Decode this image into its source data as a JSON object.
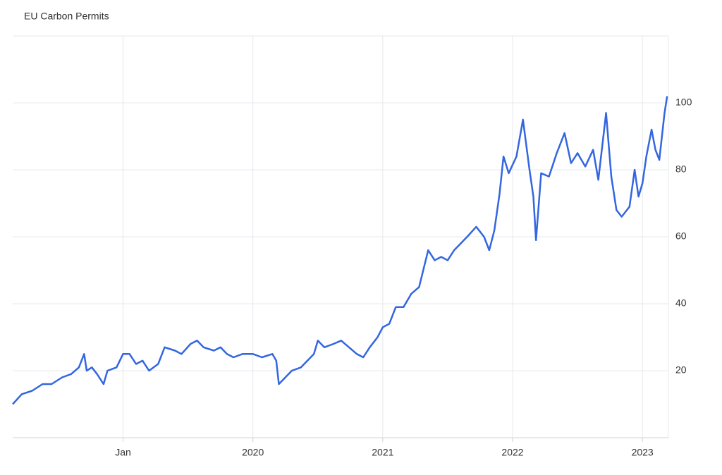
{
  "chart_data": {
    "type": "line",
    "title": "EU Carbon Permits",
    "x": [
      2018.15,
      2018.22,
      2018.3,
      2018.38,
      2018.45,
      2018.53,
      2018.6,
      2018.66,
      2018.7,
      2018.72,
      2018.76,
      2018.8,
      2018.85,
      2018.88,
      2018.95,
      2019.0,
      2019.05,
      2019.1,
      2019.15,
      2019.2,
      2019.27,
      2019.32,
      2019.4,
      2019.45,
      2019.52,
      2019.57,
      2019.62,
      2019.7,
      2019.75,
      2019.8,
      2019.85,
      2019.92,
      2020.0,
      2020.07,
      2020.15,
      2020.18,
      2020.2,
      2020.25,
      2020.3,
      2020.37,
      2020.42,
      2020.47,
      2020.5,
      2020.55,
      2020.62,
      2020.68,
      2020.74,
      2020.8,
      2020.85,
      2020.9,
      2020.96,
      2021.0,
      2021.05,
      2021.1,
      2021.16,
      2021.22,
      2021.28,
      2021.35,
      2021.4,
      2021.45,
      2021.5,
      2021.55,
      2021.65,
      2021.72,
      2021.78,
      2021.82,
      2021.86,
      2021.9,
      2021.93,
      2021.97,
      2022.03,
      2022.08,
      2022.13,
      2022.16,
      2022.18,
      2022.22,
      2022.28,
      2022.34,
      2022.4,
      2022.45,
      2022.5,
      2022.56,
      2022.62,
      2022.66,
      2022.72,
      2022.76,
      2022.8,
      2022.84,
      2022.9,
      2022.94,
      2022.97,
      2023.0,
      2023.03,
      2023.07,
      2023.1,
      2023.13,
      2023.17,
      2023.19
    ],
    "series": [
      {
        "name": "EU Carbon Permits",
        "color": "#3366e0",
        "values": [
          10,
          13,
          14,
          16,
          16,
          18,
          19,
          21,
          25,
          20,
          21,
          19,
          16,
          20,
          21,
          25,
          25,
          22,
          23,
          20,
          22,
          27,
          26,
          25,
          28,
          29,
          27,
          26,
          27,
          25,
          24,
          25,
          25,
          24,
          25,
          23,
          16,
          18,
          20,
          21,
          23,
          25,
          29,
          27,
          28,
          29,
          27,
          25,
          24,
          27,
          30,
          33,
          34,
          39,
          39,
          43,
          45,
          56,
          53,
          54,
          53,
          56,
          60,
          63,
          60,
          56,
          62,
          73,
          84,
          79,
          84,
          95,
          80,
          72,
          59,
          79,
          78,
          85,
          91,
          82,
          85,
          81,
          86,
          77,
          97,
          78,
          68,
          66,
          69,
          80,
          72,
          76,
          84,
          92,
          86,
          83,
          97,
          102
        ]
      }
    ],
    "xlim": [
      2018.15,
      2023.2
    ],
    "xticks": [
      {
        "value": 2019,
        "label": "Jan"
      },
      2020,
      2021,
      2022,
      2023
    ],
    "ylim": [
      0,
      120
    ],
    "yticks": [
      20,
      40,
      60,
      80,
      100
    ],
    "grid": true
  }
}
